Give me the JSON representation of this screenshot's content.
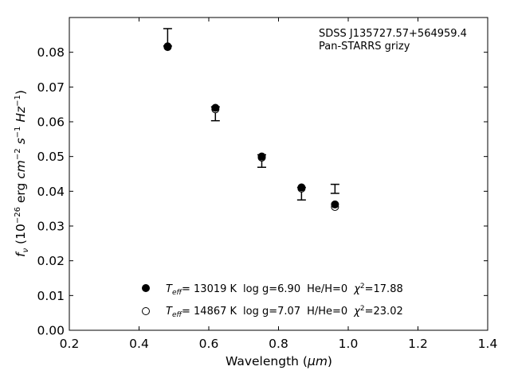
{
  "chart_data": {
    "type": "scatter",
    "xlabel_text": "Wavelength (",
    "xlabel_unit": "μm",
    "xlabel_close": ")",
    "ylabel_f": "f",
    "ylabel_nu": "ν",
    "ylabel_mid1": " (10",
    "ylabel_exp1": "−26",
    "ylabel_mid2": " erg ",
    "ylabel_cm": "cm",
    "ylabel_exp2": "−2",
    "ylabel_s": " s",
    "ylabel_exp3": "−1",
    "ylabel_hz": " Hz",
    "ylabel_exp4": "−1",
    "ylabel_close": ")",
    "xlim": [
      0.2,
      1.4
    ],
    "ylim": [
      0.0,
      0.09
    ],
    "xticks": [
      "0.2",
      "0.4",
      "0.6",
      "0.8",
      "1.0",
      "1.2",
      "1.4"
    ],
    "yticks": [
      "0.00",
      "0.01",
      "0.02",
      "0.03",
      "0.04",
      "0.05",
      "0.06",
      "0.07",
      "0.08"
    ],
    "annotation_lines": [
      "SDSS J135727.57+564959.4",
      "Pan-STARRS grizy"
    ],
    "observed": [
      {
        "x": 0.482,
        "y": 0.0843,
        "yerr": 0.0025
      },
      {
        "x": 0.619,
        "y": 0.0623,
        "yerr": 0.002
      },
      {
        "x": 0.752,
        "y": 0.0487,
        "yerr": 0.0018
      },
      {
        "x": 0.866,
        "y": 0.0393,
        "yerr": 0.0018
      },
      {
        "x": 0.962,
        "y": 0.0407,
        "yerr": 0.0013
      }
    ],
    "series": [
      {
        "marker": "filled",
        "x": [
          0.482,
          0.619,
          0.752,
          0.866,
          0.962
        ],
        "y": [
          0.0817,
          0.064,
          0.05,
          0.0411,
          0.0362
        ]
      },
      {
        "marker": "open",
        "x": [
          0.482,
          0.619,
          0.752,
          0.866,
          0.962
        ],
        "y": [
          0.0815,
          0.0636,
          0.0497,
          0.0408,
          0.0355
        ]
      }
    ],
    "legend": [
      {
        "marker": "filled",
        "teff_sym": "T",
        "teff_sub": "eff",
        "teff_val": "= 13019 K",
        "logg": "log g=6.90",
        "comp": "He/H=0",
        "chi_sym": "χ",
        "chi_sup": "2",
        "chi_val": "=17.88"
      },
      {
        "marker": "open",
        "teff_sym": "T",
        "teff_sub": "eff",
        "teff_val": "= 14867 K",
        "logg": "log g=7.07",
        "comp": "H/He=0",
        "chi_sym": "χ",
        "chi_sup": "2",
        "chi_val": "=23.02"
      }
    ],
    "grid": false
  }
}
